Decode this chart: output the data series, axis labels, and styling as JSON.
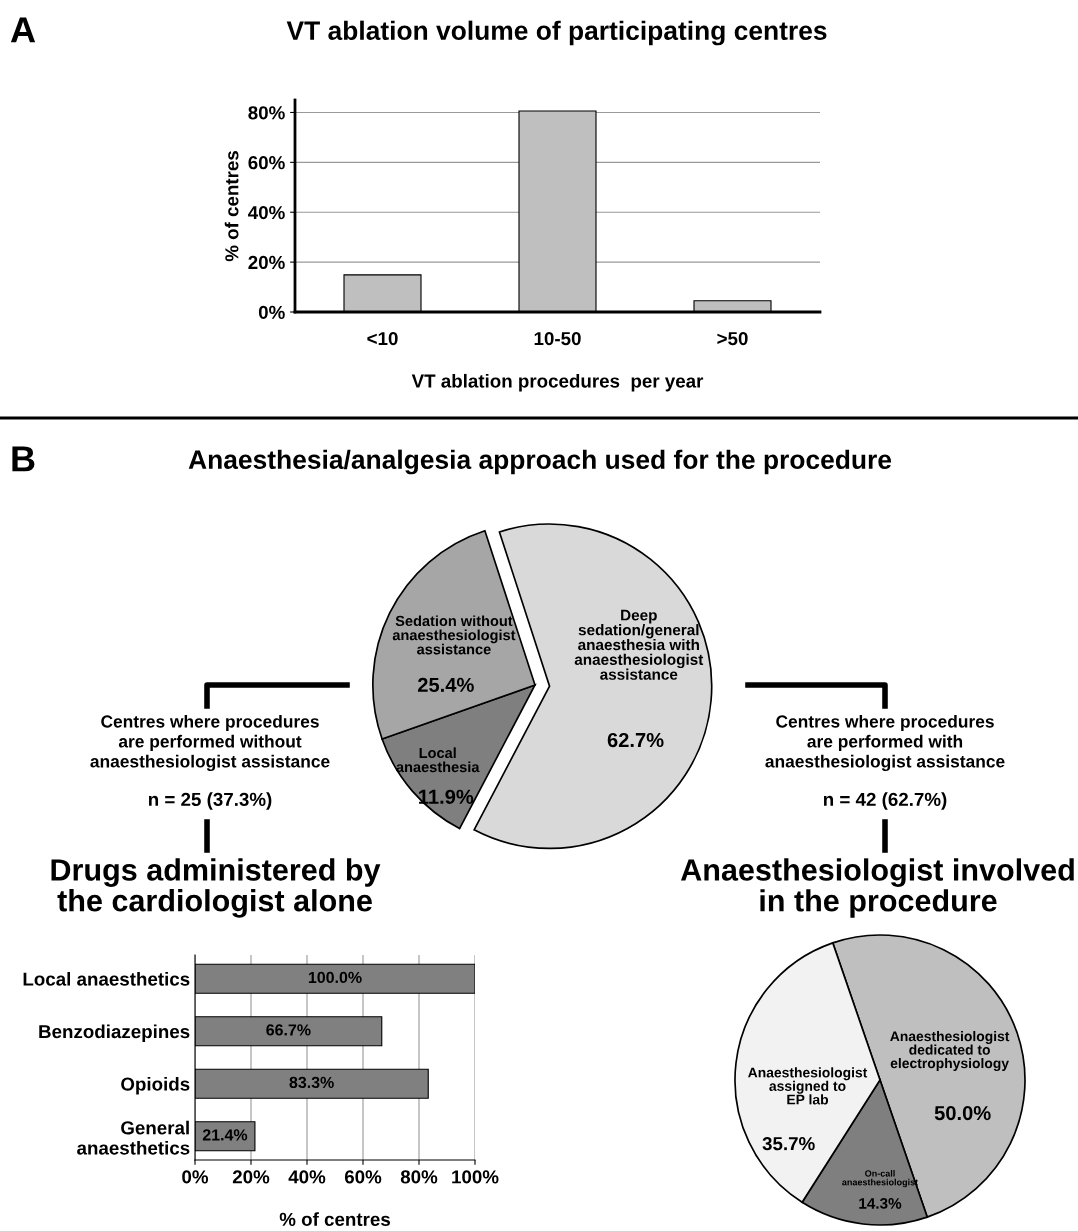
{
  "chart_data": [
    {
      "type": "bar",
      "title": "VT ablation volume of participating centres",
      "xlabel": "VT ablation procedures  per year",
      "ylabel": "% of centres",
      "categories": [
        "<10",
        "10-50",
        ">50"
      ],
      "values": [
        14.9,
        80.6,
        4.5
      ],
      "color": "#bfbfbf",
      "ylim": [
        0,
        85
      ],
      "yticks": [
        {
          "value": 0,
          "label": "0%"
        },
        {
          "value": 20,
          "label": "20%"
        },
        {
          "value": 40,
          "label": "40%"
        },
        {
          "value": 60,
          "label": "60%"
        },
        {
          "value": 80,
          "label": "80%"
        }
      ],
      "grid": "y",
      "annotations": [
        "A"
      ]
    },
    {
      "type": "pie",
      "title": "Anaesthesia/analgesia approach used for the procedure",
      "categories": [
        "Deep\nsedation/general\nanaesthesia with\nanaesthesiologist\nassistance",
        "Local\nanaesthesia",
        "Sedation without\nanaesthesiologist\nassistance"
      ],
      "values": [
        62.7,
        11.9,
        25.4
      ],
      "colors": [
        "#d9d9d9",
        "#7f7f7f",
        "#a6a6a6"
      ],
      "value_labels": [
        "62.7%",
        "11.9%",
        "25.4%"
      ],
      "annotations": [
        "B",
        "Centres where procedures\nare performed without\nanaesthesiologist assistance",
        "n = 25 (37.3%)",
        "Centres where procedures\nare performed with\nanaesthesiologist assistance",
        "n = 42 (62.7%)"
      ]
    },
    {
      "type": "bar",
      "orientation": "horizontal",
      "title": "Drugs administered by\nthe cardiologist alone",
      "xlabel": "% of centres",
      "categories": [
        "Local anaesthetics",
        "Benzodiazepines",
        "Opioids",
        "General\nanaesthetics"
      ],
      "values": [
        100.0,
        66.7,
        83.3,
        21.4
      ],
      "color": "#808080",
      "value_labels": [
        "100.0%",
        "66.7%",
        "83.3%",
        "21.4%"
      ],
      "xlim": [
        0,
        100
      ],
      "xticks": [
        {
          "value": 0,
          "label": "0%"
        },
        {
          "value": 20,
          "label": "20%"
        },
        {
          "value": 40,
          "label": "40%"
        },
        {
          "value": 60,
          "label": "60%"
        },
        {
          "value": 80,
          "label": "80%"
        },
        {
          "value": 100,
          "label": "100%"
        }
      ],
      "grid": "x"
    },
    {
      "type": "pie",
      "title": "Anaesthesiologist involved\nin the procedure",
      "categories": [
        "Anaesthesiologist\ndedicated to\nelectrophysiology",
        "On-call\nanaesthesiologist",
        "Anaesthesiologist\nassigned to\nEP lab"
      ],
      "values": [
        50.0,
        14.3,
        35.7
      ],
      "colors": [
        "#bfbfbf",
        "#7f7f7f",
        "#f2f2f2"
      ],
      "value_labels": [
        "50.0%",
        "14.3%",
        "35.7%"
      ]
    }
  ]
}
